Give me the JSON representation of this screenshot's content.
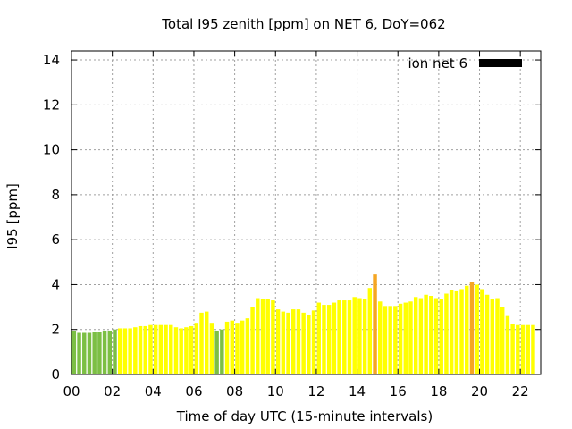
{
  "chart_data": {
    "type": "bar",
    "title": "Total I95 zenith [ppm] on NET 6, DoY=062",
    "xlabel": "Time of day UTC (15-minute intervals)",
    "ylabel": "I95 [ppm]",
    "xlim": [
      0,
      23
    ],
    "ylim": [
      0,
      14.4
    ],
    "x_ticks": [
      {
        "value": 0,
        "label": "00"
      },
      {
        "value": 2,
        "label": "02"
      },
      {
        "value": 4,
        "label": "04"
      },
      {
        "value": 6,
        "label": "06"
      },
      {
        "value": 8,
        "label": "08"
      },
      {
        "value": 10,
        "label": "10"
      },
      {
        "value": 12,
        "label": "12"
      },
      {
        "value": 14,
        "label": "14"
      },
      {
        "value": 16,
        "label": "16"
      },
      {
        "value": 18,
        "label": "18"
      },
      {
        "value": 20,
        "label": "20"
      },
      {
        "value": 22,
        "label": "22"
      }
    ],
    "y_ticks": [
      {
        "value": 0,
        "label": "0"
      },
      {
        "value": 2,
        "label": "2"
      },
      {
        "value": 4,
        "label": "4"
      },
      {
        "value": 6,
        "label": "6"
      },
      {
        "value": 8,
        "label": "8"
      },
      {
        "value": 10,
        "label": "10"
      },
      {
        "value": 12,
        "label": "12"
      },
      {
        "value": 14,
        "label": "14"
      }
    ],
    "grid": true,
    "legend": {
      "label": "ion net 6",
      "color": "#000000",
      "placement": "top-right"
    },
    "bar_interval_hours": 0.25,
    "values": [
      1.95,
      1.85,
      1.85,
      1.85,
      1.9,
      1.9,
      1.95,
      1.95,
      2.0,
      2.05,
      2.05,
      2.05,
      2.1,
      2.15,
      2.15,
      2.2,
      2.2,
      2.2,
      2.2,
      2.2,
      2.1,
      2.05,
      2.1,
      2.15,
      2.3,
      2.75,
      2.8,
      2.3,
      1.95,
      2.0,
      2.35,
      2.4,
      2.3,
      2.4,
      2.5,
      3.0,
      3.4,
      3.35,
      3.35,
      3.3,
      2.9,
      2.8,
      2.75,
      2.9,
      2.9,
      2.75,
      2.65,
      2.85,
      3.2,
      3.1,
      3.1,
      3.2,
      3.3,
      3.3,
      3.3,
      3.45,
      3.4,
      3.35,
      3.85,
      4.45,
      3.25,
      3.05,
      3.05,
      3.05,
      3.15,
      3.2,
      3.25,
      3.45,
      3.4,
      3.55,
      3.5,
      3.4,
      3.35,
      3.6,
      3.75,
      3.7,
      3.8,
      3.95,
      4.1,
      4.0,
      3.8,
      3.55,
      3.35,
      3.4,
      3.0,
      2.6,
      2.25,
      2.2,
      2.2,
      2.2,
      2.2
    ],
    "colors": {
      "green": "#7cbf44",
      "yellow": "#ffff00",
      "orange": "#f5a623",
      "grid": "#a0a0a0"
    },
    "bar_color_keys": [
      "green",
      "green",
      "green",
      "green",
      "green",
      "green",
      "green",
      "green",
      "green",
      "yellow",
      "yellow",
      "yellow",
      "yellow",
      "yellow",
      "yellow",
      "yellow",
      "yellow",
      "yellow",
      "yellow",
      "yellow",
      "yellow",
      "yellow",
      "yellow",
      "yellow",
      "yellow",
      "yellow",
      "yellow",
      "yellow",
      "green",
      "green",
      "yellow",
      "yellow",
      "yellow",
      "yellow",
      "yellow",
      "yellow",
      "yellow",
      "yellow",
      "yellow",
      "yellow",
      "yellow",
      "yellow",
      "yellow",
      "yellow",
      "yellow",
      "yellow",
      "yellow",
      "yellow",
      "yellow",
      "yellow",
      "yellow",
      "yellow",
      "yellow",
      "yellow",
      "yellow",
      "yellow",
      "yellow",
      "yellow",
      "yellow",
      "orange",
      "yellow",
      "yellow",
      "yellow",
      "yellow",
      "yellow",
      "yellow",
      "yellow",
      "yellow",
      "yellow",
      "yellow",
      "yellow",
      "yellow",
      "yellow",
      "yellow",
      "yellow",
      "yellow",
      "yellow",
      "yellow",
      "orange",
      "yellow",
      "yellow",
      "yellow",
      "yellow",
      "yellow",
      "yellow",
      "yellow",
      "yellow",
      "yellow",
      "yellow",
      "yellow",
      "yellow"
    ]
  }
}
